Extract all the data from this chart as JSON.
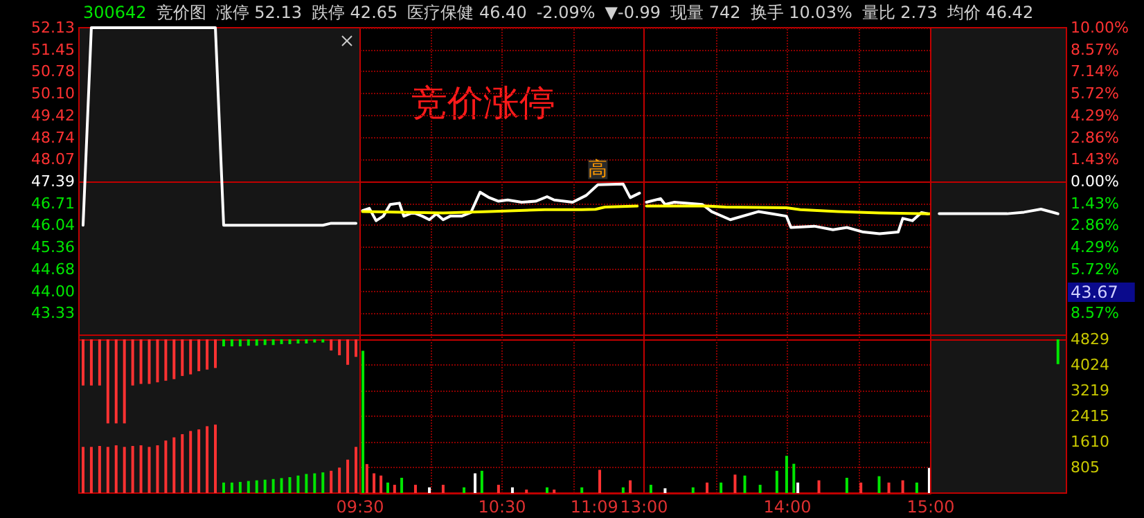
{
  "chart_data": [
    {
      "type": "line",
      "title": "300642",
      "annotations": [
        "竞价图",
        "涨停 52.13",
        "跌停 42.65",
        "医疗保健 46.40",
        "-2.09%",
        "▼-0.99",
        "现量 742",
        "换手 10.03%",
        "量比 2.73",
        "均价 46.42"
      ],
      "categories": [
        null,
        null,
        null,
        null,
        null,
        null,
        null,
        null,
        null,
        null,
        null,
        null,
        null,
        null,
        null,
        null,
        null,
        null,
        null,
        null,
        null,
        null,
        null,
        null,
        null,
        null,
        null,
        null,
        null,
        null,
        null,
        null,
        null,
        null
      ],
      "values": [
        46.04,
        52.13,
        52.13,
        52.13,
        52.13,
        52.13,
        52.13,
        52.13,
        52.13,
        52.13,
        52.13,
        52.13,
        52.13,
        52.13,
        52.13,
        52.13,
        52.13,
        46.04,
        46.04,
        46.04,
        46.04,
        46.04,
        46.04,
        46.04,
        46.04,
        46.04,
        46.04,
        46.04,
        46.04,
        46.04,
        46.1,
        46.1,
        46.1,
        46.1
      ],
      "color": "#ffffff",
      "ylim": [
        42.65,
        52.13
      ],
      "yticks": [
        {
          "value": 52.13,
          "label": "52.13"
        },
        {
          "value": 51.45,
          "label": "51.45"
        },
        {
          "value": 50.78,
          "label": "50.78"
        },
        {
          "value": 50.1,
          "label": "50.10"
        },
        {
          "value": 49.42,
          "label": "49.42"
        },
        {
          "value": 48.74,
          "label": "48.74"
        },
        {
          "value": 48.07,
          "label": "48.07"
        },
        {
          "value": 47.39,
          "label": "47.39"
        },
        {
          "value": 46.71,
          "label": "46.71"
        },
        {
          "value": 46.04,
          "label": "46.04"
        },
        {
          "value": 45.36,
          "label": "45.36"
        },
        {
          "value": 44.68,
          "label": "44.68"
        },
        {
          "value": 44.0,
          "label": "44.00"
        },
        {
          "value": 43.33,
          "label": "43.33"
        }
      ],
      "tick_labels": "y",
      "ref_lines": [
        {
          "axis": "y",
          "value": 47.39,
          "color": "#c00000",
          "line_style": "solid"
        }
      ]
    },
    {
      "type": "line",
      "subtitle": "竞价涨停",
      "annotations": [
        {
          "text": "高",
          "x": 11.175,
          "y": 47.29
        }
      ],
      "xlim": [
        9.5,
        11.5
      ],
      "ylim": [
        42.65,
        52.13
      ],
      "yticks": [
        52.13,
        51.45,
        50.78,
        50.1,
        49.42,
        48.74,
        48.07,
        47.39,
        46.71,
        46.04,
        45.36,
        44.68,
        44.0,
        43.33
      ],
      "tick_labels": false,
      "grid": "y",
      "series": [
        {
          "color": "#ffffff",
          "x": [
            9.517,
            9.565,
            9.613,
            9.663,
            9.712,
            9.777,
            9.808,
            9.873,
            9.938,
            9.988,
            10.037,
            10.085,
            10.135,
            10.215,
            10.28,
            10.345,
            10.41,
            10.475,
            10.54,
            10.638,
            10.737,
            10.817,
            10.867,
            10.997,
            11.093,
            11.175,
            11.353,
            11.403,
            11.468
          ],
          "values": [
            46.49,
            46.56,
            46.18,
            46.32,
            46.68,
            46.72,
            46.32,
            46.43,
            46.32,
            46.21,
            46.39,
            46.21,
            46.32,
            46.32,
            46.43,
            47.06,
            46.89,
            46.78,
            46.82,
            46.75,
            46.78,
            46.92,
            46.82,
            46.75,
            46.96,
            47.29,
            47.31,
            46.89,
            47.03
          ]
        },
        {
          "color": "#ffff00",
          "x": [
            9.517,
            10.085,
            10.41,
            10.802,
            11.062,
            11.158,
            11.225,
            11.452
          ],
          "values": [
            46.46,
            46.42,
            46.46,
            46.52,
            46.52,
            46.53,
            46.6,
            46.63
          ]
        }
      ],
      "ref_lines": [
        {
          "axis": "y",
          "value": 47.39,
          "color": "#c00000",
          "line_style": "solid"
        },
        {
          "axis": "x",
          "value": 10,
          "color": "#8a0000",
          "line_style": "dotted"
        },
        {
          "axis": "x",
          "value": 10.5,
          "color": "#8a0000",
          "line_style": "dotted"
        },
        {
          "axis": "x",
          "value": 11,
          "color": "#8a0000",
          "line_style": "dotted"
        }
      ]
    },
    {
      "type": "line",
      "xlim": [
        13,
        15
      ],
      "ylim": [
        42.65,
        52.13
      ],
      "yticks": [
        52.13,
        51.45,
        50.78,
        50.1,
        49.42,
        48.74,
        48.07,
        47.39,
        46.71,
        46.04,
        45.36,
        44.68,
        44.0,
        43.33
      ],
      "tick_labels": false,
      "grid": "y",
      "series": [
        {
          "color": "#ffffff",
          "x": [
            13.017,
            13.115,
            13.147,
            13.212,
            13.407,
            13.472,
            13.602,
            13.797,
            13.895,
            13.993,
            14.025,
            14.188,
            14.318,
            14.415,
            14.53,
            14.643,
            14.773,
            14.805,
            14.872,
            14.935,
            14.98
          ],
          "values": [
            46.75,
            46.86,
            46.68,
            46.75,
            46.68,
            46.46,
            46.21,
            46.46,
            46.39,
            46.32,
            45.97,
            46.01,
            45.9,
            45.97,
            45.83,
            45.78,
            45.83,
            46.25,
            46.18,
            46.43,
            46.39
          ]
        },
        {
          "color": "#ffff00",
          "x": [
            13.017,
            13.44,
            13.57,
            13.993,
            14.09,
            14.352,
            14.643,
            15.0
          ],
          "values": [
            46.63,
            46.63,
            46.6,
            46.58,
            46.52,
            46.46,
            46.42,
            46.39
          ]
        }
      ],
      "ref_lines": [
        {
          "axis": "y",
          "value": 47.39,
          "color": "#c00000",
          "line_style": "solid"
        },
        {
          "axis": "x",
          "value": 13.5,
          "color": "#8a0000",
          "line_style": "dotted"
        },
        {
          "axis": "x",
          "value": 14,
          "color": "#8a0000",
          "line_style": "dotted"
        },
        {
          "axis": "x",
          "value": 14.5,
          "color": "#8a0000",
          "line_style": "dotted"
        }
      ]
    },
    {
      "type": "line",
      "annotations": [
        "43.67"
      ],
      "categories": [
        null,
        null,
        null,
        null,
        null,
        null,
        null,
        null
      ],
      "values": [
        -2.1,
        -2.1,
        -2.1,
        -2.1,
        -2.1,
        -2.0,
        -1.8,
        -2.1
      ],
      "color": "#ffffff",
      "ylim": [
        -10,
        10
      ],
      "yticks": [
        {
          "value": 10,
          "label": "10.00%"
        },
        {
          "value": 8.57,
          "label": "8.57%"
        },
        {
          "value": 7.14,
          "label": "7.14%"
        },
        {
          "value": 5.72,
          "label": "5.72%"
        },
        {
          "value": 4.29,
          "label": "4.29%"
        },
        {
          "value": 2.86,
          "label": "2.86%"
        },
        {
          "value": 1.43,
          "label": "1.43%"
        },
        {
          "value": 0,
          "label": "0.00%"
        },
        {
          "value": -1.43,
          "label": "1.43%"
        },
        {
          "value": -2.86,
          "label": "2.86%"
        },
        {
          "value": -4.29,
          "label": "4.29%"
        },
        {
          "value": -5.72,
          "label": "5.72%"
        },
        {
          "value": -8.57,
          "label": "8.57%"
        }
      ],
      "tick_labels": "y",
      "ref_lines": [
        {
          "axis": "y",
          "value": 0,
          "color": "#c00000",
          "line_style": "solid"
        }
      ]
    },
    {
      "type": "bar",
      "categories": [
        null,
        null,
        null,
        null,
        null,
        null,
        null,
        null,
        null,
        null,
        null,
        null,
        null,
        null,
        null,
        null,
        null,
        null,
        null,
        null,
        null,
        null,
        null,
        null,
        null,
        null,
        null,
        null,
        null,
        null,
        null,
        null,
        null,
        null
      ],
      "ylim": [
        0,
        4960
      ],
      "tick_labels": false,
      "series": [
        {
          "values": [
            1450,
            1450,
            1480,
            1450,
            1500,
            1450,
            1480,
            1500,
            1450,
            1500,
            1650,
            1750,
            1850,
            1950,
            2000,
            2100,
            2150,
            330,
            330,
            350,
            380,
            400,
            420,
            440,
            470,
            500,
            550,
            600,
            620,
            650,
            700,
            800,
            1050,
            1450
          ],
          "colors": [
            "#ff3232",
            "#ff3232",
            "#ff3232",
            "#ff3232",
            "#ff3232",
            "#ff3232",
            "#ff3232",
            "#ff3232",
            "#ff3232",
            "#ff3232",
            "#ff3232",
            "#ff3232",
            "#ff3232",
            "#ff3232",
            "#ff3232",
            "#ff3232",
            "#ff3232",
            "#00e600",
            "#00e600",
            "#00e600",
            "#00e600",
            "#00e600",
            "#00e600",
            "#00e600",
            "#00e600",
            "#00e600",
            "#00e600",
            "#00e600",
            "#00e600",
            "#00e600",
            "#ff3232",
            "#ff3232",
            "#ff3232",
            "#ff3232"
          ]
        },
        {
          "values": [
            1450,
            1450,
            1450,
            2640,
            2640,
            2640,
            1450,
            1400,
            1400,
            1350,
            1300,
            1250,
            1150,
            1100,
            1000,
            950,
            900,
            220,
            220,
            220,
            200,
            200,
            180,
            180,
            150,
            150,
            130,
            130,
            100,
            100,
            350,
            500,
            800,
            550
          ],
          "base": [
            3379,
            3379,
            3379,
            2189,
            2189,
            2189,
            3379,
            3429,
            3429,
            3479,
            3529,
            3579,
            3679,
            3729,
            3829,
            3879,
            3929,
            4609,
            4609,
            4609,
            4629,
            4629,
            4649,
            4649,
            4679,
            4679,
            4699,
            4699,
            4729,
            4729,
            4479,
            4329,
            4029,
            4279
          ],
          "colors": [
            "#ff3232",
            "#ff3232",
            "#ff3232",
            "#ff3232",
            "#ff3232",
            "#ff3232",
            "#ff3232",
            "#ff3232",
            "#ff3232",
            "#ff3232",
            "#ff3232",
            "#ff3232",
            "#ff3232",
            "#ff3232",
            "#ff3232",
            "#ff3232",
            "#ff3232",
            "#00e600",
            "#00e600",
            "#00e600",
            "#00e600",
            "#00e600",
            "#00e600",
            "#00e600",
            "#00e600",
            "#00e600",
            "#00e600",
            "#00e600",
            "#00e600",
            "#00e600",
            "#ff3232",
            "#ff3232",
            "#ff3232",
            "#ff3232"
          ]
        }
      ],
      "ref_lines": [
        {
          "axis": "y",
          "value": 4829,
          "color": "#c00000",
          "line_style": "solid"
        }
      ]
    },
    {
      "type": "bar",
      "xlim": [
        9.5,
        11.5
      ],
      "xticks": [
        {
          "value": 9.5,
          "label": "09:30"
        },
        {
          "value": 10.5,
          "label": "10:30"
        },
        {
          "value": 11.15,
          "label": "11:09"
        }
      ],
      "ylim": [
        0,
        4960
      ],
      "yticks": [
        805,
        1610,
        2415,
        3219,
        4024,
        4829
      ],
      "grid": "y",
      "tick_labels": "x",
      "x": [
        9.52,
        9.548,
        9.598,
        9.647,
        9.695,
        9.743,
        9.793,
        9.89,
        9.988,
        10.085,
        10.232,
        10.31,
        10.358,
        10.475,
        10.573,
        10.672,
        10.817,
        10.867,
        11.062,
        11.188,
        11.353,
        11.403
      ],
      "values": [
        4470,
        910,
        620,
        550,
        330,
        260,
        480,
        260,
        180,
        260,
        180,
        620,
        700,
        260,
        180,
        110,
        180,
        110,
        180,
        730,
        180,
        400
      ],
      "colors": [
        "#00e600",
        "#ff3232",
        "#ff3232",
        "#ff3232",
        "#00e600",
        "#ff3232",
        "#00e600",
        "#ff3232",
        "#ffffff",
        "#ff3232",
        "#00e600",
        "#ffffff",
        "#00e600",
        "#ff3232",
        "#ffffff",
        "#ff3232",
        "#00e600",
        "#ff3232",
        "#00e600",
        "#ff3232",
        "#00e600",
        "#ff3232"
      ],
      "ref_lines": [
        {
          "axis": "y",
          "value": 4829,
          "color": "#c00000",
          "line_style": "solid"
        },
        {
          "axis": "x",
          "value": 10,
          "color": "#8a0000",
          "line_style": "dotted"
        },
        {
          "axis": "x",
          "value": 10.5,
          "color": "#8a0000",
          "line_style": "dotted"
        },
        {
          "axis": "x",
          "value": 11,
          "color": "#8a0000",
          "line_style": "dotted"
        }
      ]
    },
    {
      "type": "bar",
      "xlim": [
        13,
        15
      ],
      "xticks": [
        {
          "value": 13,
          "label": "13:00"
        },
        {
          "value": 14,
          "label": "14:00"
        },
        {
          "value": 15,
          "label": "15:00"
        }
      ],
      "ylim": [
        0,
        4960
      ],
      "yticks": [
        805,
        1610,
        2415,
        3219,
        4024,
        4829
      ],
      "grid": "y",
      "tick_labels": "x",
      "x": [
        13.048,
        13.147,
        13.342,
        13.44,
        13.537,
        13.635,
        13.703,
        13.81,
        13.927,
        13.995,
        14.045,
        14.073,
        14.22,
        14.415,
        14.513,
        14.64,
        14.708,
        14.805,
        14.903,
        14.99
      ],
      "values": [
        260,
        150,
        180,
        330,
        330,
        580,
        550,
        260,
        700,
        1170,
        920,
        330,
        400,
        480,
        330,
        530,
        330,
        400,
        330,
        790
      ],
      "colors": [
        "#00e600",
        "#ffffff",
        "#00e600",
        "#ff3232",
        "#00e600",
        "#ff3232",
        "#00e600",
        "#00e600",
        "#00e600",
        "#00e600",
        "#00e600",
        "#ffffff",
        "#ff3232",
        "#00e600",
        "#ff3232",
        "#00e600",
        "#ff3232",
        "#ff3232",
        "#00e600",
        "#ffffff"
      ],
      "ref_lines": [
        {
          "axis": "y",
          "value": 4829,
          "color": "#c00000",
          "line_style": "solid"
        },
        {
          "axis": "x",
          "value": 13.5,
          "color": "#8a0000",
          "line_style": "dotted"
        },
        {
          "axis": "x",
          "value": 14,
          "color": "#8a0000",
          "line_style": "dotted"
        },
        {
          "axis": "x",
          "value": 14.5,
          "color": "#8a0000",
          "line_style": "dotted"
        }
      ]
    },
    {
      "type": "bar",
      "categories": [
        null,
        null,
        null,
        null,
        null,
        null,
        null,
        null
      ],
      "ylim": [
        0,
        4960
      ],
      "yticks": [
        805,
        1610,
        2415,
        3219,
        4024,
        4829
      ],
      "tick_labels": "y",
      "values": [
        null,
        null,
        null,
        null,
        null,
        null,
        null,
        780
      ],
      "base": [
        null,
        null,
        null,
        null,
        null,
        null,
        null,
        4050
      ],
      "color": "#00e600",
      "ref_lines": [
        {
          "axis": "y",
          "value": 4829,
          "color": "#c00000",
          "line_style": "solid"
        }
      ]
    }
  ]
}
